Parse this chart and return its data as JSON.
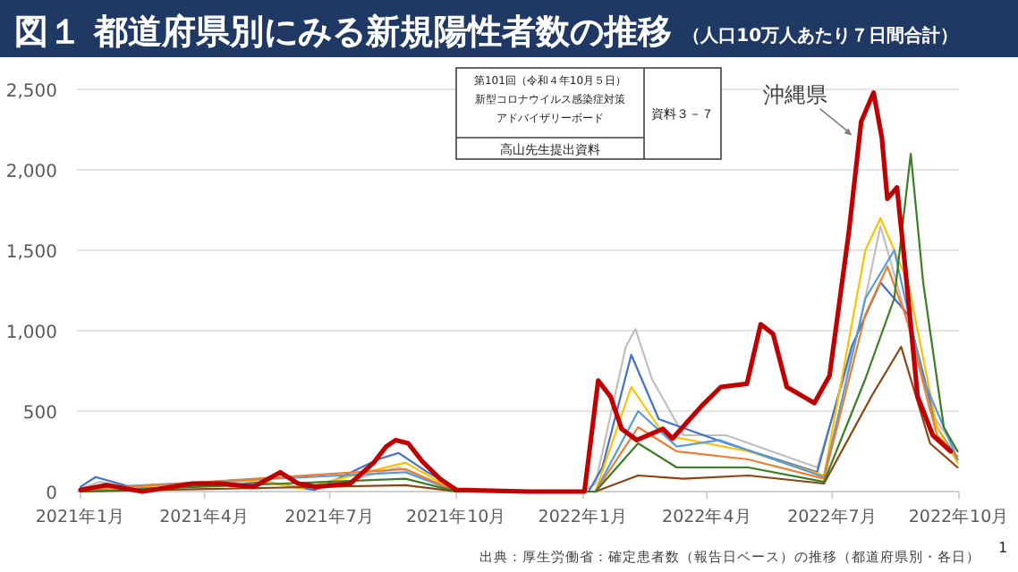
{
  "chart_data": {
    "type": "line",
    "title": "図１ 都道府県別にみる新規陽性者数の推移",
    "subtitle": "（人口10万人あたり７日間合計）",
    "xlim": [
      "2021-01-01",
      "2022-10-01"
    ],
    "xticks": [
      {
        "value": "2021-01-01",
        "label": "2021年1月"
      },
      {
        "value": "2021-04-01",
        "label": "2021年4月"
      },
      {
        "value": "2021-07-01",
        "label": "2021年7月"
      },
      {
        "value": "2021-10-01",
        "label": "2021年10月"
      },
      {
        "value": "2022-01-01",
        "label": "2022年1月"
      },
      {
        "value": "2022-04-01",
        "label": "2022年4月"
      },
      {
        "value": "2022-07-01",
        "label": "2022年7月"
      },
      {
        "value": "2022-10-01",
        "label": "2022年10月"
      }
    ],
    "ylim": [
      0,
      2500
    ],
    "yticks": [
      0,
      {
        "value": 500,
        "label": "500"
      },
      {
        "value": 1000,
        "label": "1,000"
      },
      {
        "value": 1500,
        "label": "1,500"
      },
      {
        "value": 2000,
        "label": "2,000"
      },
      {
        "value": 2500,
        "label": "2,500"
      }
    ],
    "grid": "y",
    "marker": "none",
    "line_style": "solid",
    "series": [
      {
        "color": "#bfbfbf",
        "x": [
          "2021-01-01",
          "2021-01-15",
          "2021-02-15",
          "2021-04-20",
          "2021-05-20",
          "2021-06-20",
          "2021-08-20",
          "2021-10-01",
          "2022-01-01",
          "2022-01-10",
          "2022-02-01",
          "2022-02-08",
          "2022-02-20",
          "2022-03-15",
          "2022-04-15",
          "2022-06-20",
          "2022-07-20",
          "2022-08-05",
          "2022-08-20",
          "2022-09-10",
          "2022-09-30"
        ],
        "values": [
          20,
          60,
          10,
          70,
          50,
          10,
          150,
          0,
          0,
          50,
          900,
          1010,
          700,
          350,
          350,
          150,
          1000,
          1650,
          1200,
          500,
          250
        ]
      },
      {
        "color": "#4472c4",
        "x": [
          "2021-01-01",
          "2021-01-12",
          "2021-02-10",
          "2021-04-20",
          "2021-05-15",
          "2021-06-20",
          "2021-08-05",
          "2021-08-20",
          "2021-09-10",
          "2021-10-05",
          "2022-01-05",
          "2022-01-15",
          "2022-02-05",
          "2022-02-25",
          "2022-04-15",
          "2022-06-20",
          "2022-07-15",
          "2022-08-05",
          "2022-08-25",
          "2022-09-15",
          "2022-09-30"
        ],
        "values": [
          30,
          90,
          20,
          40,
          60,
          10,
          200,
          240,
          120,
          0,
          0,
          150,
          850,
          450,
          300,
          120,
          900,
          1300,
          1100,
          400,
          200
        ]
      },
      {
        "color": "#ffc000",
        "x": [
          "2021-01-01",
          "2021-05-10",
          "2021-06-10",
          "2021-08-25",
          "2021-10-01",
          "2022-01-10",
          "2022-02-05",
          "2022-03-01",
          "2022-05-01",
          "2022-06-25",
          "2022-07-25",
          "2022-08-05",
          "2022-08-25",
          "2022-09-15",
          "2022-09-30"
        ],
        "values": [
          10,
          70,
          20,
          180,
          0,
          0,
          650,
          350,
          250,
          100,
          1500,
          1700,
          1300,
          400,
          180
        ]
      },
      {
        "color": "#5b9bd5",
        "x": [
          "2021-01-01",
          "2021-08-25",
          "2021-10-01",
          "2022-01-10",
          "2022-02-10",
          "2022-03-10",
          "2022-04-10",
          "2022-06-25",
          "2022-07-25",
          "2022-08-15",
          "2022-09-05",
          "2022-09-30"
        ],
        "values": [
          20,
          120,
          0,
          0,
          500,
          280,
          320,
          90,
          1200,
          1500,
          700,
          200
        ]
      },
      {
        "color": "#ed7d31",
        "x": [
          "2021-01-01",
          "2021-08-25",
          "2021-10-01",
          "2022-01-10",
          "2022-02-10",
          "2022-03-10",
          "2022-05-01",
          "2022-06-25",
          "2022-07-25",
          "2022-08-10",
          "2022-08-25",
          "2022-09-15",
          "2022-09-30"
        ],
        "values": [
          10,
          140,
          0,
          0,
          400,
          250,
          200,
          80,
          1100,
          1400,
          1050,
          350,
          220
        ]
      },
      {
        "color": "#8b4513",
        "x": [
          "2021-01-01",
          "2021-08-25",
          "2021-10-01",
          "2022-01-10",
          "2022-02-10",
          "2022-03-15",
          "2022-05-01",
          "2022-06-25",
          "2022-07-30",
          "2022-08-20",
          "2022-09-10",
          "2022-09-30"
        ],
        "values": [
          0,
          40,
          0,
          0,
          100,
          80,
          100,
          50,
          600,
          900,
          300,
          150
        ]
      },
      {
        "color": "#3a7d22",
        "x": [
          "2021-01-01",
          "2021-08-25",
          "2021-10-01",
          "2022-01-10",
          "2022-02-10",
          "2022-03-10",
          "2022-05-01",
          "2022-06-25",
          "2022-07-25",
          "2022-08-15",
          "2022-08-27",
          "2022-09-05",
          "2022-09-20",
          "2022-09-30"
        ],
        "values": [
          0,
          80,
          0,
          0,
          300,
          150,
          150,
          60,
          700,
          1200,
          2100,
          1300,
          400,
          250
        ]
      },
      {
        "name": "沖縄県",
        "color": "#c00000",
        "x": [
          "2021-01-01",
          "2021-01-20",
          "2021-02-15",
          "2021-03-23",
          "2021-04-12",
          "2021-05-07",
          "2021-05-26",
          "2021-06-08",
          "2021-06-21",
          "2021-07-16",
          "2021-08-02",
          "2021-08-11",
          "2021-08-18",
          "2021-08-27",
          "2021-09-06",
          "2021-09-19",
          "2021-10-01",
          "2021-11-22",
          "2022-01-02",
          "2022-01-12",
          "2022-01-21",
          "2022-01-29",
          "2022-02-09",
          "2022-02-28",
          "2022-03-07",
          "2022-03-29",
          "2022-04-11",
          "2022-04-30",
          "2022-05-10",
          "2022-05-19",
          "2022-05-29",
          "2022-06-10",
          "2022-06-18",
          "2022-06-29",
          "2022-07-13",
          "2022-07-22",
          "2022-07-31",
          "2022-08-06",
          "2022-08-10",
          "2022-08-17",
          "2022-08-23",
          "2022-09-01",
          "2022-09-12",
          "2022-09-25"
        ],
        "values": [
          10,
          40,
          0,
          50,
          50,
          30,
          120,
          50,
          30,
          50,
          180,
          280,
          320,
          300,
          190,
          80,
          10,
          0,
          0,
          690,
          590,
          390,
          320,
          390,
          330,
          540,
          650,
          670,
          1040,
          980,
          650,
          590,
          550,
          720,
          1610,
          2300,
          2480,
          2200,
          1820,
          1890,
          1390,
          590,
          350,
          250
        ]
      }
    ],
    "annotations": [
      "第101回（令和４年10月５日）",
      "新型コロナウイルス感染症対策",
      "アドバイザリーボード",
      "資料３－７",
      "高山先生提出資料",
      "出典：厚生労働省：確定患者数（報告日ベース）の推移（都道府県別・各日）",
      "1"
    ]
  }
}
